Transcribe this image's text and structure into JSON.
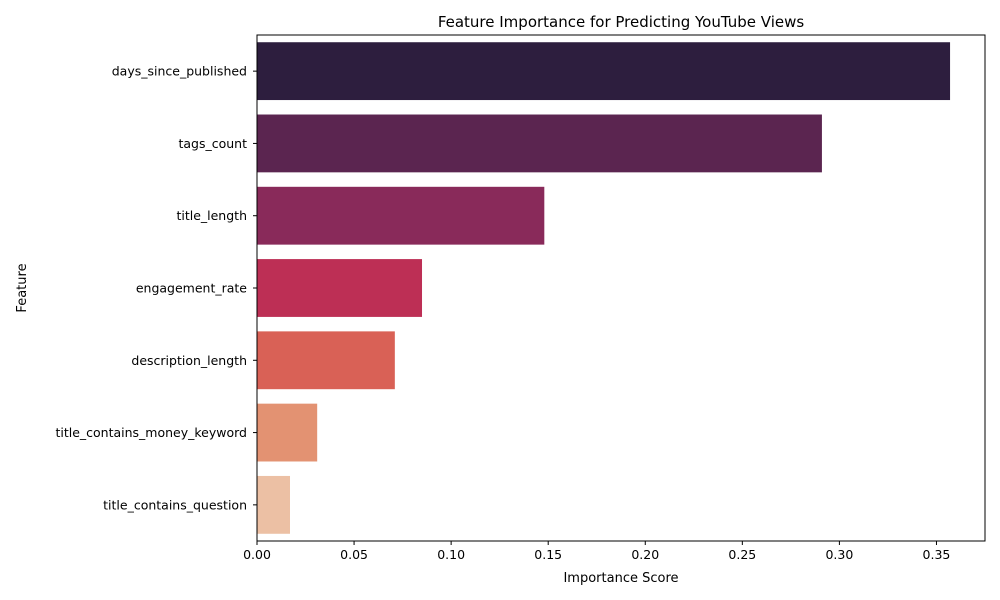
{
  "chart_data": {
    "type": "bar",
    "orientation": "horizontal",
    "title": "Feature Importance for Predicting YouTube Views",
    "xlabel": "Importance Score",
    "ylabel": "Feature",
    "categories": [
      "days_since_published",
      "tags_count",
      "title_length",
      "engagement_rate",
      "description_length",
      "title_contains_money_keyword",
      "title_contains_question"
    ],
    "values": [
      0.357,
      0.291,
      0.148,
      0.085,
      0.071,
      0.031,
      0.017
    ],
    "colors": [
      "#2d1e3e",
      "#5b2550",
      "#892a5a",
      "#bd2f55",
      "#d96156",
      "#e39272",
      "#ecc0a4"
    ],
    "xlim": [
      0,
      0.375
    ],
    "xticks": [
      0.0,
      0.05,
      0.1,
      0.15,
      0.2,
      0.25,
      0.3,
      0.35
    ],
    "xtick_labels": [
      "0.00",
      "0.05",
      "0.10",
      "0.15",
      "0.20",
      "0.25",
      "0.30",
      "0.35"
    ],
    "grid": false,
    "legend": "none"
  }
}
